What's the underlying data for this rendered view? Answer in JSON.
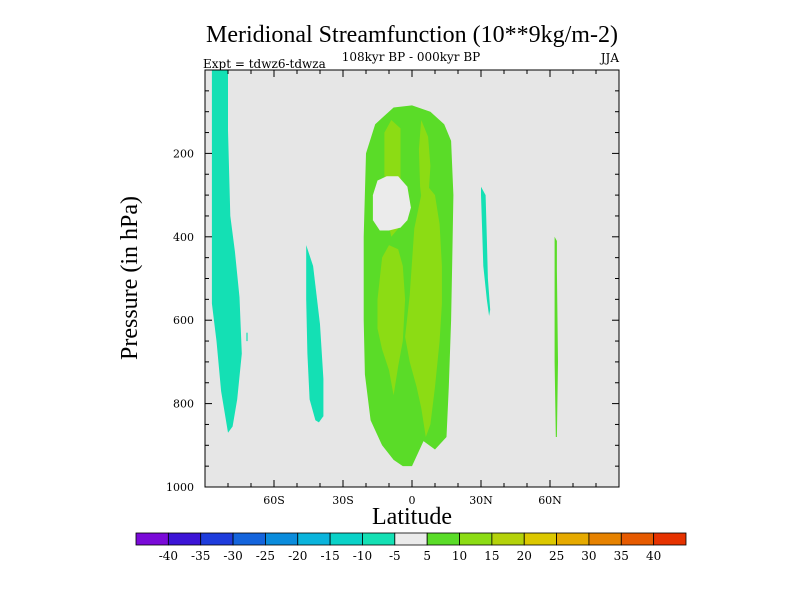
{
  "chart_data": {
    "type": "heatmap",
    "title": "Meridional Streamfunction (10**9kg/m-2)",
    "subtitle": "108kyr BP - 000kyr BP",
    "left_label": "Expt = tdwz6-tdwza",
    "right_label": "JJA",
    "xlabel": "Latitude",
    "ylabel": "Pressure (in hPa)",
    "xlim": [
      -90,
      90
    ],
    "ylim": [
      0,
      1000
    ],
    "x_ticks": [
      {
        "value": -60,
        "label": "60S"
      },
      {
        "value": -30,
        "label": "30S"
      },
      {
        "value": 0,
        "label": "0"
      },
      {
        "value": 30,
        "label": "30N"
      },
      {
        "value": 60,
        "label": "60N"
      }
    ],
    "y_ticks": [
      {
        "value": 200,
        "label": "200"
      },
      {
        "value": 400,
        "label": "400"
      },
      {
        "value": 600,
        "label": "600"
      },
      {
        "value": 800,
        "label": "800"
      },
      {
        "value": 1000,
        "label": "1000"
      }
    ],
    "background_color": "#e6e6e6",
    "levels": [
      -40,
      -35,
      -30,
      -25,
      -20,
      -15,
      -10,
      -5,
      5,
      10,
      15,
      20,
      25,
      30,
      35,
      40
    ],
    "colorbar_colors": [
      "#7a0ad8",
      "#3c14d6",
      "#1e3cdc",
      "#1464dc",
      "#0a8cdc",
      "#0ab4dc",
      "#0ad2c8",
      "#14e0b4",
      "#ebebeb",
      "#5adc28",
      "#8cdc14",
      "#b4d20a",
      "#dcc800",
      "#e6aa00",
      "#e68200",
      "#e65a00",
      "#e63200"
    ],
    "regions": [
      {
        "name": "neg-band-south-polar",
        "fill": "#14e0b4",
        "points": [
          [
            -87,
            0
          ],
          [
            -80,
            0
          ],
          [
            -80,
            145
          ],
          [
            -79,
            350
          ],
          [
            -77,
            435
          ],
          [
            -75,
            545
          ],
          [
            -74,
            680
          ],
          [
            -76,
            790
          ],
          [
            -78,
            855
          ],
          [
            -80,
            870
          ],
          [
            -83,
            770
          ],
          [
            -85,
            650
          ],
          [
            -87,
            560
          ]
        ]
      },
      {
        "name": "neg-sliver-70s",
        "fill": "#14e0b4",
        "points": [
          [
            -72,
            630
          ],
          [
            -71.5,
            630
          ],
          [
            -71.5,
            650
          ],
          [
            -72,
            650
          ]
        ]
      },
      {
        "name": "neg-band-45s",
        "fill": "#14e0b4",
        "points": [
          [
            -46,
            420
          ],
          [
            -43,
            470
          ],
          [
            -40,
            610
          ],
          [
            -38.5,
            740
          ],
          [
            -38.5,
            830
          ],
          [
            -40.5,
            845
          ],
          [
            -42,
            840
          ],
          [
            -44.5,
            790
          ],
          [
            -45.5,
            680
          ],
          [
            -46,
            550
          ]
        ]
      },
      {
        "name": "neg-band-30n",
        "fill": "#14e0b4",
        "points": [
          [
            30,
            280
          ],
          [
            32,
            300
          ],
          [
            32.5,
            400
          ],
          [
            33,
            500
          ],
          [
            34,
            575
          ],
          [
            33.5,
            590
          ],
          [
            32.5,
            550
          ],
          [
            31,
            470
          ],
          [
            30.5,
            380
          ],
          [
            30,
            300
          ]
        ]
      },
      {
        "name": "pos-outer-equatorial",
        "fill": "#5adc28",
        "points": [
          [
            -20,
            200
          ],
          [
            -16,
            130
          ],
          [
            -8,
            90
          ],
          [
            0,
            85
          ],
          [
            8,
            100
          ],
          [
            14,
            130
          ],
          [
            17,
            170
          ],
          [
            18,
            300
          ],
          [
            17.5,
            450
          ],
          [
            17,
            600
          ],
          [
            16,
            760
          ],
          [
            15,
            880
          ],
          [
            10,
            910
          ],
          [
            5,
            890
          ],
          [
            0,
            950
          ],
          [
            -4,
            950
          ],
          [
            -8,
            935
          ],
          [
            -13,
            900
          ],
          [
            -18,
            840
          ],
          [
            -20.5,
            730
          ],
          [
            -21,
            600
          ],
          [
            -21,
            400
          ]
        ]
      },
      {
        "name": "pos-core-upper-south",
        "fill": "#8cdc14",
        "points": [
          [
            -12,
            150
          ],
          [
            -9,
            120
          ],
          [
            -5,
            140
          ],
          [
            -5,
            300
          ],
          [
            -6,
            380
          ],
          [
            -9,
            400
          ],
          [
            -11,
            350
          ],
          [
            -12,
            250
          ]
        ]
      },
      {
        "name": "pos-core-upper-north",
        "fill": "#8cdc14",
        "points": [
          [
            4,
            120
          ],
          [
            7,
            160
          ],
          [
            8,
            230
          ],
          [
            7,
            320
          ],
          [
            5,
            350
          ],
          [
            3.5,
            280
          ],
          [
            3,
            190
          ]
        ]
      },
      {
        "name": "pos-core-central",
        "fill": "#8cdc14",
        "points": [
          [
            -15,
            550
          ],
          [
            -13,
            450
          ],
          [
            -10,
            420
          ],
          [
            -6,
            430
          ],
          [
            -4,
            470
          ],
          [
            -3,
            550
          ],
          [
            -4,
            650
          ],
          [
            -6,
            710
          ],
          [
            -8,
            780
          ],
          [
            -10,
            720
          ],
          [
            -13,
            670
          ],
          [
            -15,
            620
          ]
        ]
      },
      {
        "name": "pos-core-east",
        "fill": "#8cdc14",
        "points": [
          [
            -3,
            640
          ],
          [
            -1,
            540
          ],
          [
            1,
            380
          ],
          [
            4,
            300
          ],
          [
            7,
            280
          ],
          [
            10,
            300
          ],
          [
            12,
            370
          ],
          [
            13,
            470
          ],
          [
            13,
            560
          ],
          [
            12,
            650
          ],
          [
            10,
            760
          ],
          [
            8,
            850
          ],
          [
            6,
            880
          ],
          [
            4,
            810
          ],
          [
            2,
            760
          ],
          [
            -1,
            700
          ]
        ]
      },
      {
        "name": "neutral-hole",
        "fill": "#ebebeb",
        "points": [
          [
            -17,
            300
          ],
          [
            -15,
            265
          ],
          [
            -11,
            255
          ],
          [
            -6,
            255
          ],
          [
            -2,
            280
          ],
          [
            -0.5,
            330
          ],
          [
            -2,
            360
          ],
          [
            -5,
            378
          ],
          [
            -10,
            385
          ],
          [
            -14,
            385
          ],
          [
            -17,
            360
          ]
        ]
      },
      {
        "name": "pos-sliver-62n",
        "fill": "#5adc28",
        "points": [
          [
            62,
            400
          ],
          [
            63,
            410
          ],
          [
            63,
            480
          ],
          [
            63.5,
            700
          ],
          [
            63,
            880
          ],
          [
            62.5,
            880
          ],
          [
            62,
            700
          ],
          [
            62,
            500
          ]
        ]
      }
    ]
  }
}
